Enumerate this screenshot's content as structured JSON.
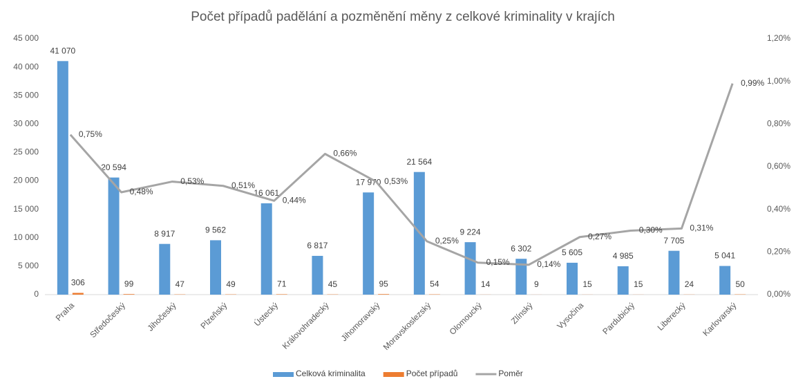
{
  "chart_data": {
    "type": "combo",
    "title": "Počet případů padělání a pozměnění měny z celkové kriminality v krajích",
    "categories": [
      "Praha",
      "Středočeský",
      "Jihočeský",
      "Plzeňský",
      "Ústecký",
      "Královohradecký",
      "Jihomoravský",
      "Moravskoslezský",
      "Olomoucký",
      "Zlínský",
      "Vysočina",
      "Pardubický",
      "Liberecký",
      "Karlovarský"
    ],
    "series": [
      {
        "name": "Celková kriminalita",
        "type": "bar",
        "color": "#5b9bd5",
        "values": [
          41070,
          20594,
          8917,
          9562,
          16061,
          6817,
          17970,
          21564,
          9224,
          6302,
          5605,
          4985,
          7705,
          5041
        ],
        "value_labels": [
          "41 070",
          "20 594",
          "8 917",
          "9 562",
          "16 061",
          "6 817",
          "17 970",
          "21 564",
          "9 224",
          "6 302",
          "5 605",
          "4 985",
          "7 705",
          "5 041"
        ]
      },
      {
        "name": "Počet případů",
        "type": "bar",
        "color": "#ed7d31",
        "values": [
          306,
          99,
          47,
          49,
          71,
          45,
          95,
          54,
          14,
          9,
          15,
          15,
          24,
          50
        ]
      },
      {
        "name": "Poměr",
        "type": "line",
        "axis": "y2",
        "color": "#a5a5a5",
        "values": [
          0.75,
          0.48,
          0.53,
          0.51,
          0.44,
          0.66,
          0.53,
          0.25,
          0.15,
          0.14,
          0.27,
          0.3,
          0.31,
          0.99
        ],
        "value_labels": [
          "0,75%",
          "0,48%",
          "0,53%",
          "0,51%",
          "0,44%",
          "0,66%",
          "0,53%",
          "0,25%",
          "0,15%",
          "0,14%",
          "0,27%",
          "0,30%",
          "0,31%",
          "0,99%"
        ]
      }
    ],
    "ylim": [
      0,
      45000
    ],
    "yticks": [
      0,
      {
        "value": 5000,
        "label": "5 000"
      },
      {
        "value": 10000,
        "label": "10 000"
      },
      {
        "value": 15000,
        "label": "15 000"
      },
      {
        "value": 20000,
        "label": "20 000"
      },
      {
        "value": 25000,
        "label": "25 000"
      },
      {
        "value": 30000,
        "label": "30 000"
      },
      {
        "value": 35000,
        "label": "35 000"
      },
      {
        "value": 40000,
        "label": "40 000"
      },
      {
        "value": 45000,
        "label": "45 000"
      }
    ],
    "y2lim": [
      0,
      1.2
    ],
    "y2ticks": [
      {
        "value": 0,
        "label": "0,00%"
      },
      {
        "value": 0.2,
        "label": "0,20%"
      },
      {
        "value": 0.4,
        "label": "0,40%"
      },
      {
        "value": 0.6,
        "label": "0,60%"
      },
      {
        "value": 0.8,
        "label": "0,80%"
      },
      {
        "value": 1.0,
        "label": "1,00%"
      },
      {
        "value": 1.2,
        "label": "1,20%"
      }
    ],
    "grid": false,
    "legend": "bottom"
  }
}
